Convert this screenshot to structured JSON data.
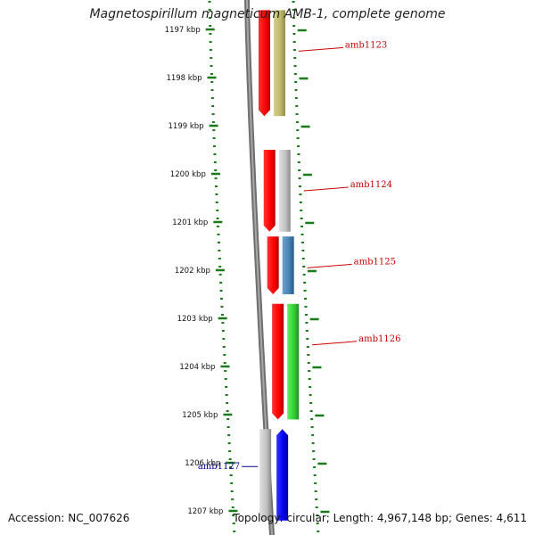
{
  "title": "Magnetospirillum magneticum AMB-1, complete genome",
  "footer": {
    "accession": "Accession: NC_007626",
    "topology": "Topology: circular; Length: 4,967,148 bp; Genes: 4,611"
  },
  "colors": {
    "background": "#ffffff",
    "backbone": "#888888",
    "tick": "#1a7a1a",
    "scale_label": "#111111",
    "gene_label_forward": "#cc0000",
    "gene_label_reverse": "#000099",
    "gene_strand_red": "#ff0000",
    "gene_strand_blue": "#0000ee",
    "gene_khaki": "#bdb76b",
    "gene_gray": "#c0c0c0",
    "gene_steelblue": "#4682b4",
    "gene_green": "#33cc33"
  },
  "scale": {
    "unit": "kbp",
    "labels": [
      "1197 kbp",
      "1198 kbp",
      "1199 kbp",
      "1200 kbp",
      "1201 kbp",
      "1202 kbp",
      "1203 kbp",
      "1204 kbp",
      "1205 kbp",
      "1206 kbp",
      "1207 kbp"
    ]
  },
  "genes": [
    {
      "label": "amb1123",
      "start_kbp": 1196.6,
      "end_kbp": 1198.8,
      "strand_color": "#ff0000",
      "function_color": "#bdb76b",
      "side": "right",
      "label_color": "#cc0000"
    },
    {
      "label": "amb1124",
      "start_kbp": 1199.5,
      "end_kbp": 1201.2,
      "strand_color": "#ff0000",
      "function_color": "#c0c0c0",
      "side": "right",
      "label_color": "#cc0000"
    },
    {
      "label": "amb1125",
      "start_kbp": 1201.3,
      "end_kbp": 1202.5,
      "strand_color": "#ff0000",
      "function_color": "#4682b4",
      "side": "right",
      "label_color": "#cc0000"
    },
    {
      "label": "amb1126",
      "start_kbp": 1202.7,
      "end_kbp": 1205.1,
      "strand_color": "#ff0000",
      "function_color": "#33cc33",
      "side": "right",
      "label_color": "#cc0000"
    },
    {
      "label": "amb1127",
      "start_kbp": 1205.3,
      "end_kbp": 1207.2,
      "strand_color": "#0000ee",
      "function_color": "#c0c0c0",
      "side": "left",
      "label_color": "#000099"
    }
  ]
}
